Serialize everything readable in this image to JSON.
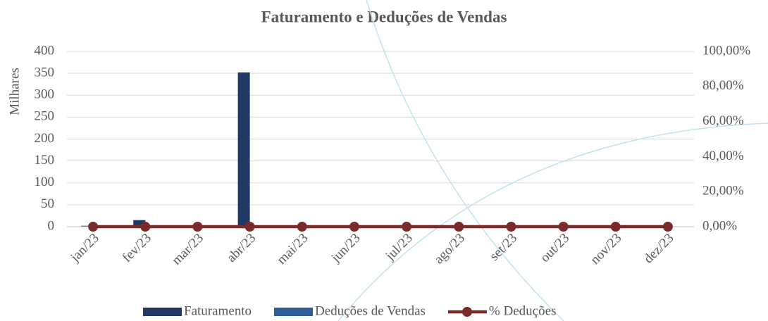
{
  "chart_data": {
    "type": "bar_line",
    "title": "Faturamento e Deduções de Vendas",
    "y_label": "Milhares",
    "categories": [
      "jan/23",
      "fev/23",
      "mar/23",
      "abr/23",
      "mai/23",
      "jun/23",
      "jul/23",
      "ago/23",
      "set/23",
      "out/23",
      "nov/23",
      "dez/23"
    ],
    "series": [
      {
        "name": "Faturamento",
        "type": "bar",
        "color": "#203864",
        "values": [
          2,
          15,
          0,
          352,
          0,
          0,
          0,
          0,
          0,
          0,
          0,
          0
        ]
      },
      {
        "name": "Deduções de Vendas",
        "type": "bar",
        "color": "#2f5b98",
        "values": [
          0,
          0,
          0,
          0,
          0,
          0,
          0,
          0,
          0,
          0,
          0,
          0
        ]
      },
      {
        "name": "% Deduções",
        "type": "line",
        "axis": "y2",
        "color": "#7b2a2a",
        "values": [
          0,
          0,
          0,
          0,
          0,
          0,
          0,
          0,
          0,
          0,
          0,
          0
        ]
      }
    ],
    "ylim": [
      0,
      400
    ],
    "yticks": [
      0,
      50,
      100,
      150,
      200,
      250,
      300,
      350,
      400
    ],
    "y2lim": [
      0,
      100
    ],
    "y2ticks": [
      {
        "value": 0,
        "label": "0,00%"
      },
      {
        "value": 20,
        "label": "20,00%"
      },
      {
        "value": 40,
        "label": "40,00%"
      },
      {
        "value": 60,
        "label": "60,00%"
      },
      {
        "value": 80,
        "label": "80,00%"
      },
      {
        "value": 100,
        "label": "100,00%"
      }
    ],
    "grid": true,
    "legend": "bottom"
  }
}
